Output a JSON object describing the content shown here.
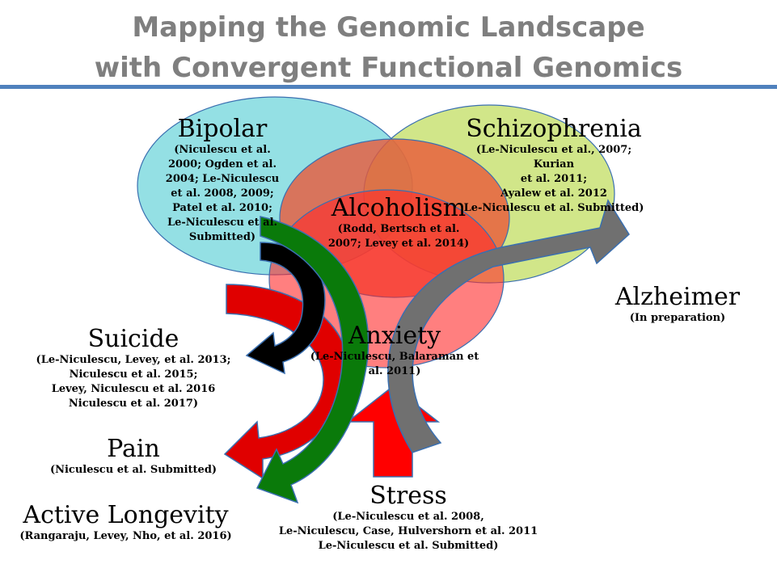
{
  "title": {
    "line1": "Mapping the Genomic Landscape",
    "line2": "with Convergent Functional Genomics"
  },
  "nodes": {
    "bipolar": {
      "name": "Bipolar",
      "cite": "(Niculescu et al.\n2000; Ogden et al.\n2004; Le-Niculescu\net al. 2008, 2009;\nPatel et al. 2010;\nLe-Niculescu et al.\nSubmitted)"
    },
    "schizophrenia": {
      "name": "Schizophrenia",
      "cite": "(Le-Niculescu et al., 2007; Kurian\net al. 2011;\nAyalew et al. 2012\nLe-Niculescu et al. Submitted)"
    },
    "alcoholism": {
      "name": "Alcoholism",
      "cite": "(Rodd, Bertsch et al.\n2007; Levey et al. 2014)"
    },
    "anxiety": {
      "name": "Anxiety",
      "cite": "(Le-Niculescu, Balaraman et\nal. 2011)"
    },
    "alzheimer": {
      "name": "Alzheimer",
      "cite": "(In preparation)"
    },
    "suicide": {
      "name": "Suicide",
      "cite": "(Le-Niculescu,  Levey, et al. 2013;\nNiculescu et al. 2015;\nLevey, Niculescu et al. 2016\nNiculescu et al. 2017)"
    },
    "pain": {
      "name": "Pain",
      "cite": "(Niculescu et al. Submitted)"
    },
    "longevity": {
      "name": "Active Longevity",
      "cite": "(Rangaraju, Levey, Nho, et al. 2016)"
    },
    "stress": {
      "name": "Stress",
      "cite": "(Le-Niculescu et al. 2008,\nLe-Niculescu, Case, Hulvershorn  et al. 2011\nLe-Niculescu et al. Submitted)"
    }
  },
  "colors": {
    "bipolar": "#5bcfd6",
    "schizophrenia": "#b8d94a",
    "alcoholism": "#e8593a",
    "anxiety": "#ff2a2a",
    "arrow_black": "#000000",
    "arrow_green": "#0a7a0a",
    "arrow_red": "#e00000",
    "arrow_gray": "#707070",
    "rule": "#4f81bd"
  }
}
